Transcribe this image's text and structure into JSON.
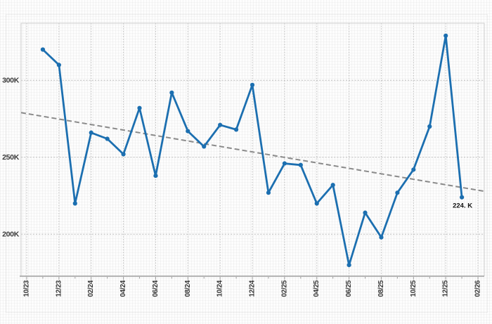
{
  "chart_data": {
    "type": "line",
    "title": "",
    "xlabel": "",
    "ylabel": "",
    "unit": "K",
    "axis_start_label": "10/23",
    "axis_end_label": "02/26",
    "categories": [
      "11/23",
      "12/23",
      "01/24",
      "02/24",
      "03/24",
      "04/24",
      "05/24",
      "06/24",
      "07/24",
      "08/24",
      "09/24",
      "10/24",
      "11/24",
      "12/24",
      "01/25",
      "02/25",
      "03/25",
      "04/25",
      "05/25",
      "06/25",
      "07/25",
      "08/25",
      "09/25",
      "10/25",
      "11/25",
      "12/25",
      "01/26"
    ],
    "values": [
      320,
      310,
      220,
      266,
      262,
      252,
      282,
      238,
      292,
      267,
      257,
      271,
      268,
      297,
      227,
      246,
      245,
      220,
      232,
      180,
      214,
      198,
      227,
      242,
      270,
      329,
      224
    ],
    "x_tick_labels": [
      "10/23",
      "12/23",
      "02/24",
      "04/24",
      "06/24",
      "08/24",
      "10/24",
      "12/24",
      "02/25",
      "04/25",
      "06/25",
      "08/25",
      "10/25",
      "12/25",
      "02/26"
    ],
    "y_tick_labels": [
      "200K",
      "250K",
      "300K"
    ],
    "y_tick_values": [
      200,
      250,
      300
    ],
    "ylim": [
      172,
      337
    ],
    "grid": true,
    "legend": "none",
    "trend_line": {
      "style": "dashed",
      "start_value": 279,
      "end_value": 228
    },
    "annotation": {
      "text": "224. K",
      "category": "01/26",
      "value": 224
    }
  },
  "colors": {
    "series_line": "#1c6fb0",
    "marker": "#1c6fb0",
    "trend": "#8a8a8a",
    "grid": "#bdbdbd",
    "frame": "#cfcfcf",
    "axis": "#9f9f9f",
    "tick_label": "#3a3a3a",
    "annotation_text": "#111111"
  }
}
